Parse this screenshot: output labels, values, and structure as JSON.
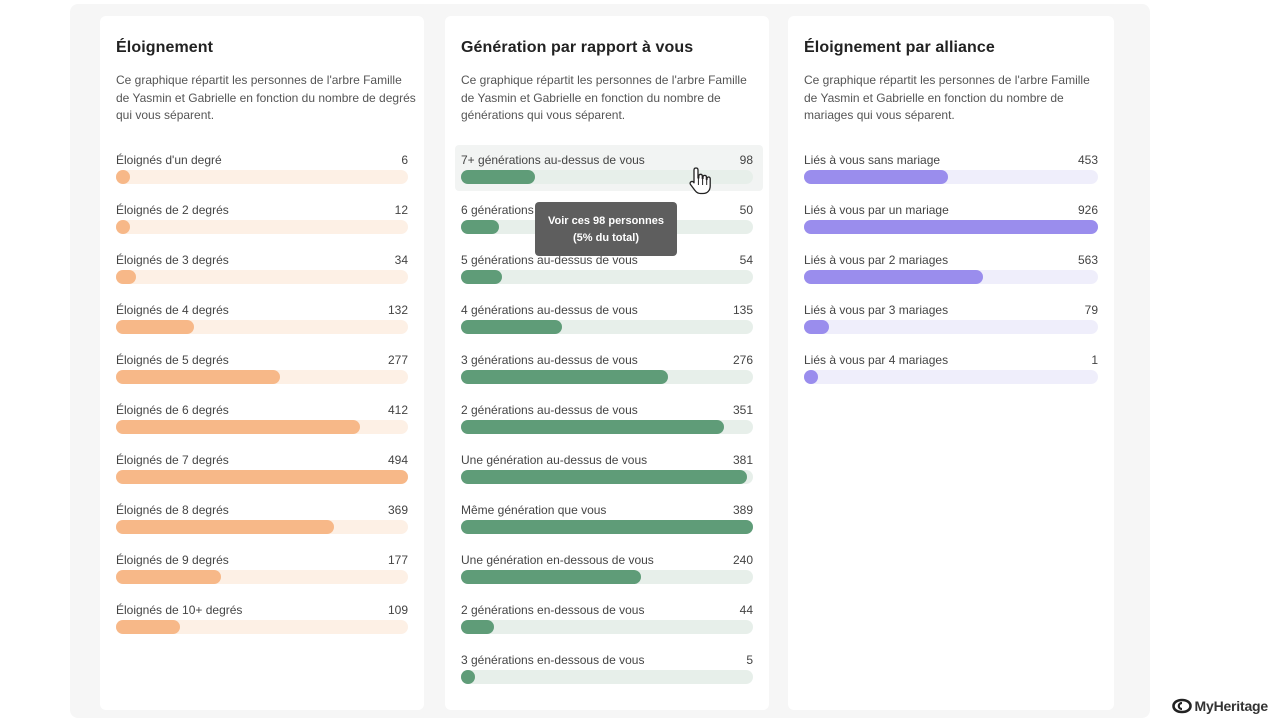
{
  "colors": {
    "orange": "#f7b888",
    "green": "#5f9c78",
    "purple": "#9a8ded"
  },
  "cards": [
    {
      "title": "Éloignement",
      "description": "Ce graphique répartit les personnes de l'arbre Famille de Yasmin et Gabrielle en fonction du nombre de degrés qui vous séparent.",
      "max": 494,
      "rows": [
        {
          "label": "Éloignés d'un degré",
          "count": "6",
          "value": 6
        },
        {
          "label": "Éloignés de 2 degrés",
          "count": "12",
          "value": 12
        },
        {
          "label": "Éloignés de 3 degrés",
          "count": "34",
          "value": 34
        },
        {
          "label": "Éloignés de 4 degrés",
          "count": "132",
          "value": 132
        },
        {
          "label": "Éloignés de 5 degrés",
          "count": "277",
          "value": 277
        },
        {
          "label": "Éloignés de 6 degrés",
          "count": "412",
          "value": 412
        },
        {
          "label": "Éloignés de 7 degrés",
          "count": "494",
          "value": 494
        },
        {
          "label": "Éloignés de 8 degrés",
          "count": "369",
          "value": 369
        },
        {
          "label": "Éloignés de 9 degrés",
          "count": "177",
          "value": 177
        },
        {
          "label": "Éloignés de 10+ degrés",
          "count": "109",
          "value": 109
        }
      ]
    },
    {
      "title": "Génération par rapport à vous",
      "description": "Ce graphique répartit les personnes de l'arbre Famille de Yasmin et Gabrielle en fonction du nombre de générations qui vous séparent.",
      "max": 389,
      "rows": [
        {
          "label": "7+ générations au-dessus de vous",
          "count": "98",
          "value": 98
        },
        {
          "label": "6 générations au-dessus de vous",
          "count": "50",
          "value": 50
        },
        {
          "label": "5 générations au-dessus de vous",
          "count": "54",
          "value": 54
        },
        {
          "label": "4 générations au-dessus de vous",
          "count": "135",
          "value": 135
        },
        {
          "label": "3 générations au-dessus de vous",
          "count": "276",
          "value": 276
        },
        {
          "label": "2 générations au-dessus de vous",
          "count": "351",
          "value": 351
        },
        {
          "label": "Une génération au-dessus de vous",
          "count": "381",
          "value": 381
        },
        {
          "label": "Même génération que vous",
          "count": "389",
          "value": 389
        },
        {
          "label": "Une génération en-dessous de vous",
          "count": "240",
          "value": 240
        },
        {
          "label": "2 générations en-dessous de vous",
          "count": "44",
          "value": 44
        },
        {
          "label": "3 générations en-dessous de vous",
          "count": "5",
          "value": 5
        }
      ]
    },
    {
      "title": "Éloignement par alliance",
      "description": "Ce graphique répartit les personnes de l'arbre Famille de Yasmin et Gabrielle en fonction du nombre de mariages qui vous séparent.",
      "max": 926,
      "rows": [
        {
          "label": "Liés à vous sans mariage",
          "count": "453",
          "value": 453
        },
        {
          "label": "Liés à vous par un mariage",
          "count": "926",
          "value": 926
        },
        {
          "label": "Liés à vous par 2 mariages",
          "count": "563",
          "value": 563
        },
        {
          "label": "Liés à vous par 3 mariages",
          "count": "79",
          "value": 79
        },
        {
          "label": "Liés à vous par 4 mariages",
          "count": "1",
          "value": 1
        }
      ]
    }
  ],
  "tooltip": {
    "line1": "Voir ces 98 personnes",
    "line2": "(5% du total)"
  },
  "brand": {
    "name": "MyHeritage",
    "icon": "myheritage-logo-icon"
  }
}
